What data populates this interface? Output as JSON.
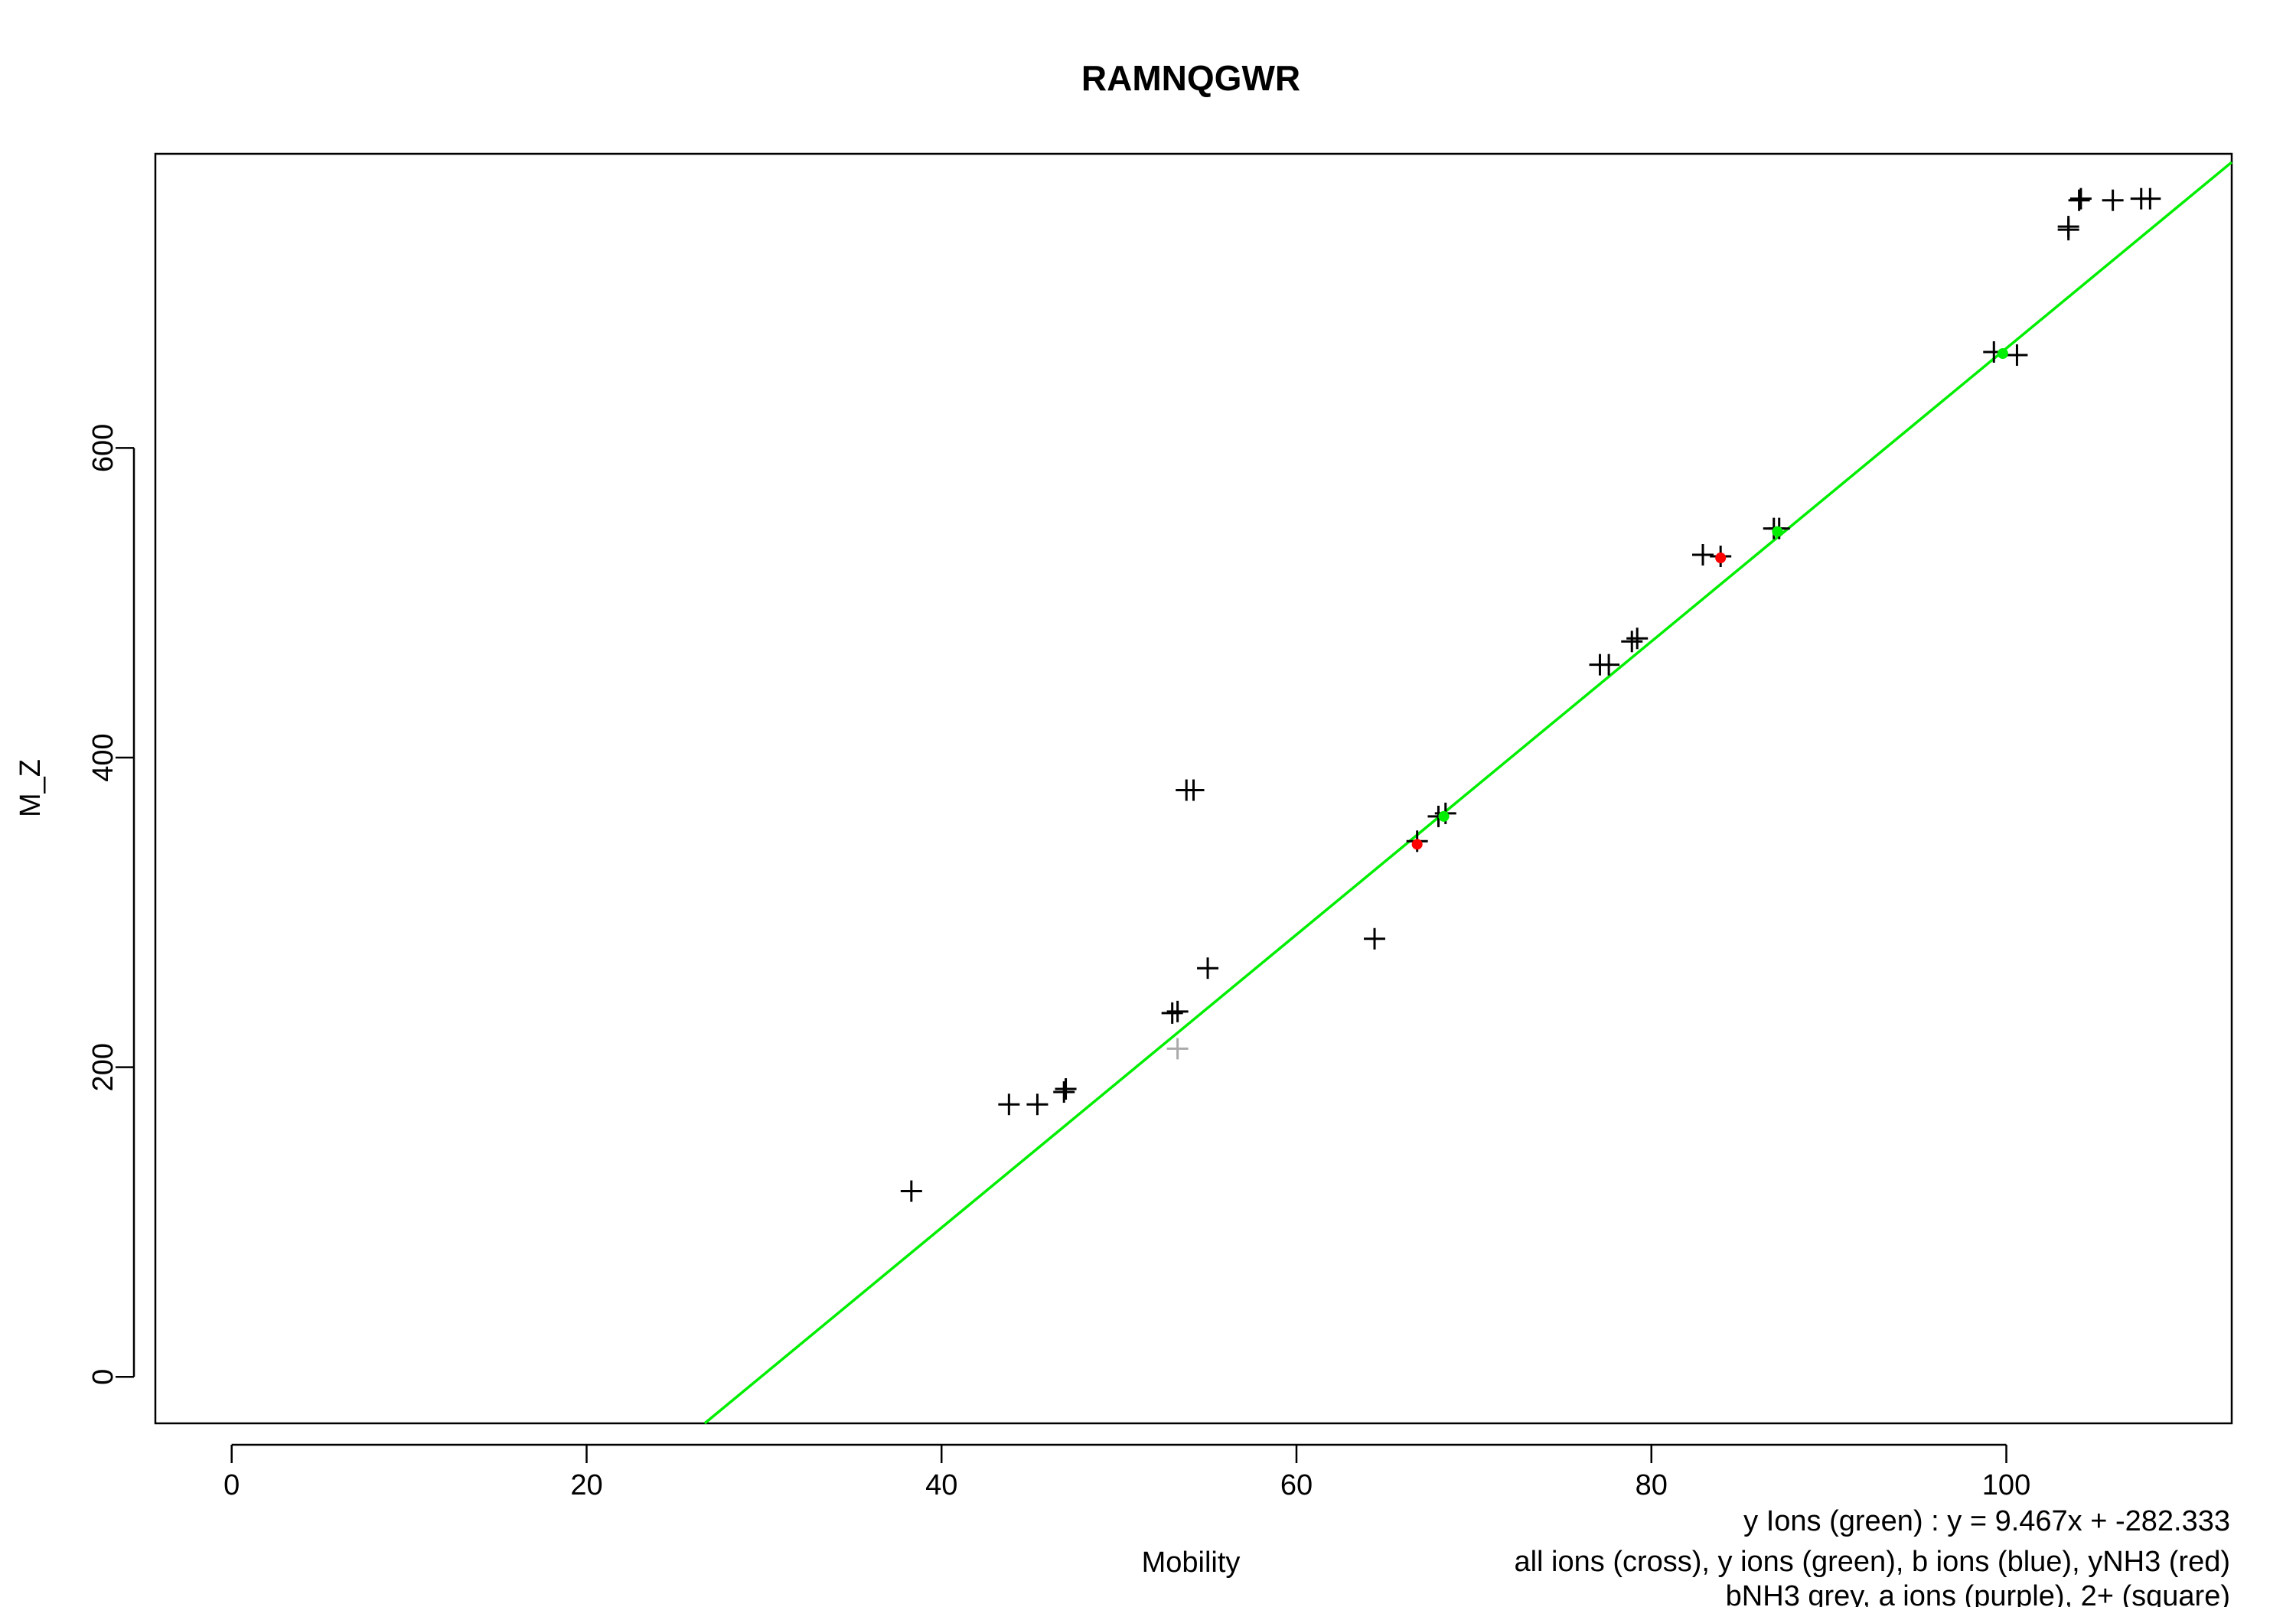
{
  "chart_data": {
    "type": "scatter",
    "title": "RAMNQGWR",
    "xlabel": "Mobility",
    "ylabel": "M_Z",
    "xlim": [
      -4.3,
      112.7
    ],
    "ylim": [
      -30,
      790
    ],
    "xticks": [
      0,
      20,
      40,
      60,
      80,
      100
    ],
    "yticks": [
      0,
      200,
      400,
      600
    ],
    "grid": false,
    "fit_line": {
      "slope": 9.467,
      "intercept": -282.333,
      "color": "#00ee00"
    },
    "series": [
      {
        "marker": "cross",
        "color": "#000000",
        "points": [
          [
            38.3,
            120
          ],
          [
            43.8,
            176
          ],
          [
            45.4,
            176
          ],
          [
            46.9,
            184
          ],
          [
            47.0,
            186
          ],
          [
            53.0,
            235
          ],
          [
            53.3,
            236
          ],
          [
            53.8,
            379
          ],
          [
            54.2,
            379
          ],
          [
            55.0,
            264
          ],
          [
            64.4,
            283
          ],
          [
            66.8,
            346
          ],
          [
            68.0,
            362
          ],
          [
            68.4,
            364
          ],
          [
            77.1,
            460
          ],
          [
            77.6,
            460
          ],
          [
            78.9,
            475
          ],
          [
            79.2,
            477
          ],
          [
            82.9,
            531
          ],
          [
            83.9,
            530
          ],
          [
            86.9,
            548
          ],
          [
            87.2,
            548
          ],
          [
            99.3,
            662
          ],
          [
            100.6,
            660
          ],
          [
            103.5,
            743
          ],
          [
            103.5,
            741
          ],
          [
            104.1,
            760
          ],
          [
            104.2,
            761
          ],
          [
            106.0,
            760
          ],
          [
            107.6,
            761
          ],
          [
            108.1,
            761
          ]
        ]
      },
      {
        "marker": "cross",
        "color": "#aaaaaa",
        "points": [
          [
            53.3,
            212
          ]
        ]
      },
      {
        "marker": "dot",
        "color": "#ff0000",
        "points": [
          [
            66.8,
            344
          ],
          [
            83.9,
            529
          ]
        ]
      },
      {
        "marker": "dot",
        "color": "#00ee00",
        "points": [
          [
            68.3,
            362
          ],
          [
            87.1,
            546
          ],
          [
            99.8,
            661
          ]
        ]
      }
    ],
    "annotations": [
      "y Ions (green) : y = 9.467x + -282.333",
      "all ions (cross), y ions (green), b ions (blue), yNH3 (red)",
      "bNH3 grey, a ions (purple), 2+ (square)"
    ]
  }
}
